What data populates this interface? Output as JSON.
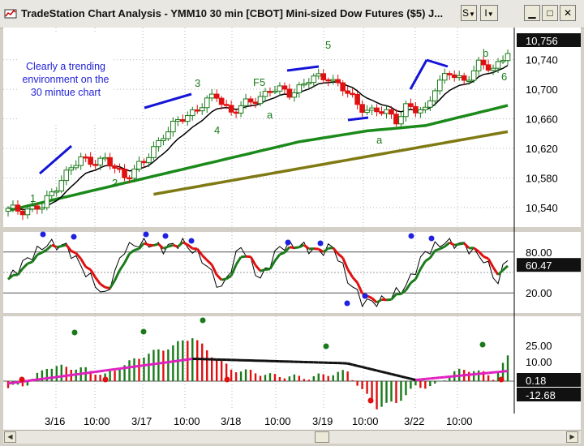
{
  "window": {
    "title": "TradeStation Chart Analysis - YMM10 30 min [CBOT] Mini-sized Dow Futures ($5) J...",
    "buttons": [
      "S",
      "I"
    ]
  },
  "note": "Clearly a trending environment on the 30 mintue chart",
  "price_pane": {
    "scale": [
      "10,756",
      "10,740",
      "10,700",
      "10,660",
      "10,620",
      "10,580",
      "10,540"
    ],
    "last_price": "10,756",
    "wave_labels": [
      "1",
      "2",
      "3",
      "4",
      "F5",
      "a",
      "5",
      "a",
      "6",
      "b"
    ]
  },
  "stoch_pane": {
    "scale": [
      "80.00",
      "20.00"
    ],
    "last_value": "60.47"
  },
  "macd_pane": {
    "scale": [
      "25.00",
      "10.00"
    ],
    "last_values": [
      "0.18",
      "-12.68"
    ]
  },
  "x_axis": [
    "3/16",
    "10:00",
    "3/17",
    "10:00",
    "3/18",
    "10:00",
    "3/19",
    "10:00",
    "3/22",
    "10:00"
  ],
  "colors": {
    "up_bar": "#1a7a1a",
    "down_bar": "#e01010",
    "ema_fast": "#000000",
    "ema_mid": "#1b8a1b",
    "ema_slow": "#807a14",
    "trendline": "#1414d8"
  }
}
